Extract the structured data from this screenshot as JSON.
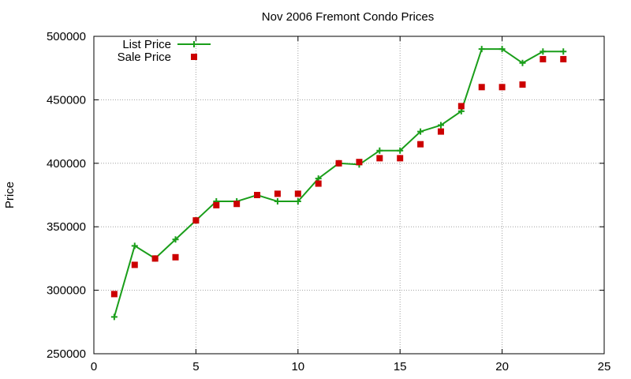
{
  "chart_data": {
    "type": "line",
    "title": "Nov 2006 Fremont Condo Prices",
    "xlabel": "",
    "ylabel": "Price",
    "xlim": [
      0,
      25
    ],
    "ylim": [
      250000,
      500000
    ],
    "xticks": [
      0,
      5,
      10,
      15,
      20,
      25
    ],
    "yticks": [
      250000,
      300000,
      350000,
      400000,
      450000,
      500000
    ],
    "xtick_labels": [
      "0",
      "5",
      "10",
      "15",
      "20",
      "25"
    ],
    "ytick_labels": [
      "250000",
      "300000",
      "350000",
      "400000",
      "450000",
      "500000"
    ],
    "grid": true,
    "legend_position": "top-left",
    "series": [
      {
        "name": "List Price",
        "style": "line-with-plus-markers",
        "color": "#1a9e1a",
        "x": [
          1,
          2,
          3,
          4,
          5,
          6,
          7,
          8,
          9,
          10,
          11,
          12,
          13,
          14,
          15,
          16,
          17,
          18,
          19,
          20,
          21,
          22,
          23
        ],
        "values": [
          279000,
          335000,
          325000,
          340000,
          355000,
          370000,
          370000,
          375000,
          370000,
          370000,
          388000,
          400000,
          399000,
          410000,
          410000,
          425000,
          430000,
          441000,
          490000,
          490000,
          479000,
          488000,
          488000
        ]
      },
      {
        "name": "Sale Price",
        "style": "square-markers",
        "color": "#cc0000",
        "x": [
          1,
          2,
          3,
          4,
          5,
          6,
          7,
          8,
          9,
          10,
          11,
          12,
          13,
          14,
          15,
          16,
          17,
          18,
          19,
          20,
          21,
          22,
          23
        ],
        "values": [
          297000,
          320000,
          325000,
          326000,
          355000,
          367000,
          368000,
          375000,
          376000,
          376000,
          384000,
          400000,
          401000,
          404000,
          404000,
          415000,
          425000,
          445000,
          460000,
          460000,
          462000,
          482000,
          482000
        ]
      }
    ]
  }
}
